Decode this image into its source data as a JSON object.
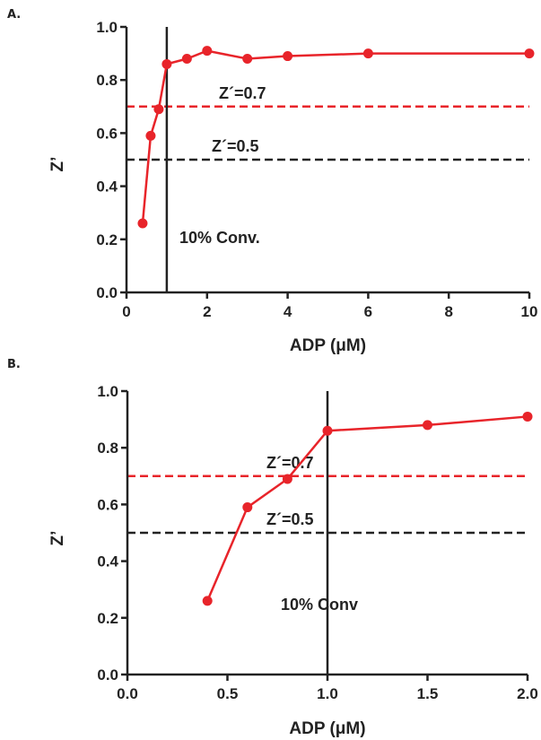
{
  "chart_data": [
    {
      "type": "line",
      "panel_label": "A.",
      "xlabel": "ADP (μM)",
      "ylabel": "Z’",
      "xlim": [
        0,
        10
      ],
      "ylim": [
        0,
        1.0
      ],
      "x_ticks": [
        "0",
        "2",
        "4",
        "6",
        "8",
        "10"
      ],
      "y_ticks": [
        "0.0",
        "0.2",
        "0.4",
        "0.6",
        "0.8",
        "1.0"
      ],
      "series": [
        {
          "color": "#e8242a",
          "x": [
            0.4,
            0.6,
            0.8,
            1.0,
            1.5,
            2.0,
            3.0,
            4.0,
            6.0,
            10.0
          ],
          "y": [
            0.26,
            0.59,
            0.69,
            0.86,
            0.88,
            0.91,
            0.88,
            0.89,
            0.9,
            0.9
          ]
        }
      ],
      "reference_lines": [
        {
          "label": "Z´=0.7",
          "y": 0.7,
          "color": "#e8242a",
          "style": "dashed"
        },
        {
          "label": "Z´=0.5",
          "y": 0.5,
          "color": "#222222",
          "style": "dashed"
        }
      ],
      "vertical_line": {
        "x": 1.0,
        "label": "10% Conv."
      }
    },
    {
      "type": "line",
      "panel_label": "B.",
      "xlabel": "ADP (μM)",
      "ylabel": "Z’",
      "xlim": [
        0,
        2.0
      ],
      "ylim": [
        0,
        1.0
      ],
      "x_ticks": [
        "0.0",
        "0.5",
        "1.0",
        "1.5",
        "2.0"
      ],
      "y_ticks": [
        "0.0",
        "0.2",
        "0.4",
        "0.6",
        "0.8",
        "1.0"
      ],
      "series": [
        {
          "color": "#e8242a",
          "x": [
            0.4,
            0.6,
            0.8,
            1.0,
            1.5,
            2.0
          ],
          "y": [
            0.26,
            0.59,
            0.69,
            0.86,
            0.88,
            0.91
          ]
        }
      ],
      "reference_lines": [
        {
          "label": "Z´=0.7",
          "y": 0.7,
          "color": "#e8242a",
          "style": "dashed"
        },
        {
          "label": "Z´=0.5",
          "y": 0.5,
          "color": "#222222",
          "style": "dashed"
        }
      ],
      "vertical_line": {
        "x": 1.0,
        "label": "10% Conv"
      }
    }
  ]
}
